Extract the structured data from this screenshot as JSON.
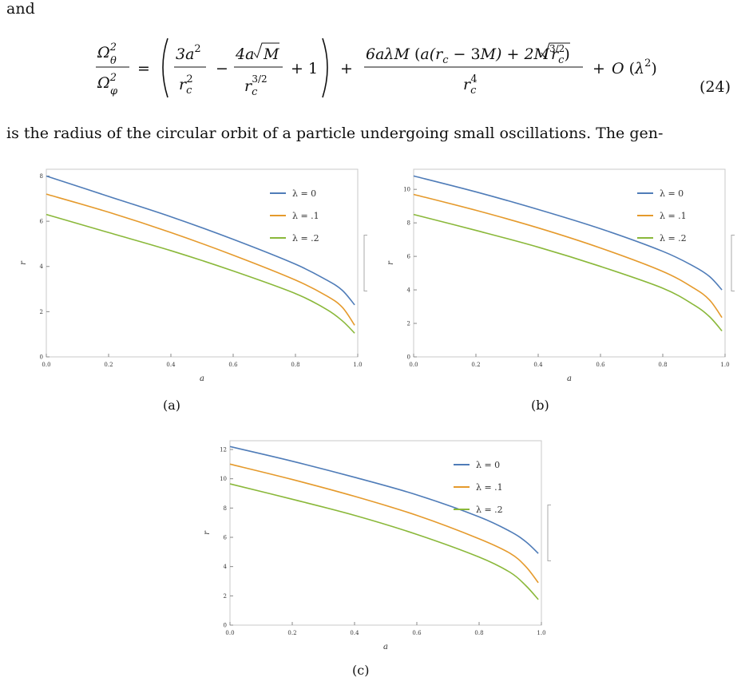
{
  "intro_word": "and",
  "equation": {
    "lhs_num": "Ω",
    "lhs_num_sup": "2",
    "lhs_num_sub": "θ",
    "lhs_den": "Ω",
    "lhs_den_sup": "2",
    "lhs_den_sub": "φ",
    "number": "(24)"
  },
  "paragraph": "is the radius of the circular orbit of a particle undergoing small oscillations. The gen-",
  "figures": [
    {
      "caption": "(a)"
    },
    {
      "caption": "(b)"
    },
    {
      "caption": "(c)"
    }
  ],
  "legend": [
    "λ = 0",
    "λ = .1",
    "λ = .2"
  ],
  "colors": {
    "s0": "#4f7cb8",
    "s1": "#e59a2c",
    "s2": "#8ab83a"
  },
  "chart_data": [
    {
      "type": "line",
      "xlabel": "a",
      "ylabel": "r",
      "xlim": [
        0,
        1
      ],
      "ylim": [
        0,
        8.3
      ],
      "xticks": [
        0.0,
        0.2,
        0.4,
        0.6,
        0.8,
        1.0
      ],
      "xtick_labels": [
        "0.0",
        "0.2",
        "0.4",
        "0.6",
        "0.8",
        "1.0"
      ],
      "yticks": [
        0,
        2,
        4,
        6,
        8
      ],
      "ytick_labels": [
        "0",
        "2",
        "4",
        "6",
        "8"
      ],
      "x": [
        0.0,
        0.2,
        0.4,
        0.6,
        0.8,
        0.9,
        0.95,
        0.99
      ],
      "series": [
        {
          "name": "λ = 0",
          "values": [
            8.0,
            7.1,
            6.2,
            5.2,
            4.1,
            3.4,
            2.95,
            2.3
          ]
        },
        {
          "name": "λ = .1",
          "values": [
            7.2,
            6.4,
            5.5,
            4.5,
            3.4,
            2.7,
            2.2,
            1.4
          ]
        },
        {
          "name": "λ = .2",
          "values": [
            6.3,
            5.5,
            4.7,
            3.8,
            2.8,
            2.1,
            1.6,
            1.05
          ]
        }
      ]
    },
    {
      "type": "line",
      "xlabel": "a",
      "ylabel": "r",
      "xlim": [
        0,
        1
      ],
      "ylim": [
        0,
        11.2
      ],
      "xticks": [
        0.0,
        0.2,
        0.4,
        0.6,
        0.8,
        1.0
      ],
      "xtick_labels": [
        "0.0",
        "0.2",
        "0.4",
        "0.6",
        "0.8",
        "1.0"
      ],
      "yticks": [
        0,
        2,
        4,
        6,
        8,
        10
      ],
      "ytick_labels": [
        "0",
        "2",
        "4",
        "6",
        "8",
        "10"
      ],
      "x": [
        0.0,
        0.2,
        0.4,
        0.6,
        0.8,
        0.9,
        0.95,
        0.99
      ],
      "series": [
        {
          "name": "λ = 0",
          "values": [
            10.8,
            9.85,
            8.8,
            7.65,
            6.3,
            5.4,
            4.8,
            4.0
          ]
        },
        {
          "name": "λ = .1",
          "values": [
            9.7,
            8.75,
            7.7,
            6.5,
            5.1,
            4.1,
            3.4,
            2.35
          ]
        },
        {
          "name": "λ = .2",
          "values": [
            8.5,
            7.55,
            6.55,
            5.4,
            4.1,
            3.1,
            2.4,
            1.55
          ]
        }
      ]
    },
    {
      "type": "line",
      "xlabel": "a",
      "ylabel": "r",
      "xlim": [
        0,
        1
      ],
      "ylim": [
        0,
        12.6
      ],
      "xticks": [
        0.0,
        0.2,
        0.4,
        0.6,
        0.8,
        1.0
      ],
      "xtick_labels": [
        "0.0",
        "0.2",
        "0.4",
        "0.6",
        "0.8",
        "1.0"
      ],
      "yticks": [
        0,
        2,
        4,
        6,
        8,
        10,
        12
      ],
      "ytick_labels": [
        "0",
        "2",
        "4",
        "6",
        "8",
        "10",
        "12"
      ],
      "x": [
        0.0,
        0.2,
        0.4,
        0.6,
        0.8,
        0.9,
        0.95,
        0.99
      ],
      "series": [
        {
          "name": "λ = 0",
          "values": [
            12.2,
            11.2,
            10.1,
            8.9,
            7.4,
            6.4,
            5.7,
            4.9
          ]
        },
        {
          "name": "λ = .1",
          "values": [
            11.0,
            9.95,
            8.8,
            7.5,
            5.9,
            4.9,
            4.0,
            2.9
          ]
        },
        {
          "name": "λ = .2",
          "values": [
            9.65,
            8.6,
            7.5,
            6.2,
            4.65,
            3.6,
            2.7,
            1.75
          ]
        }
      ]
    }
  ]
}
